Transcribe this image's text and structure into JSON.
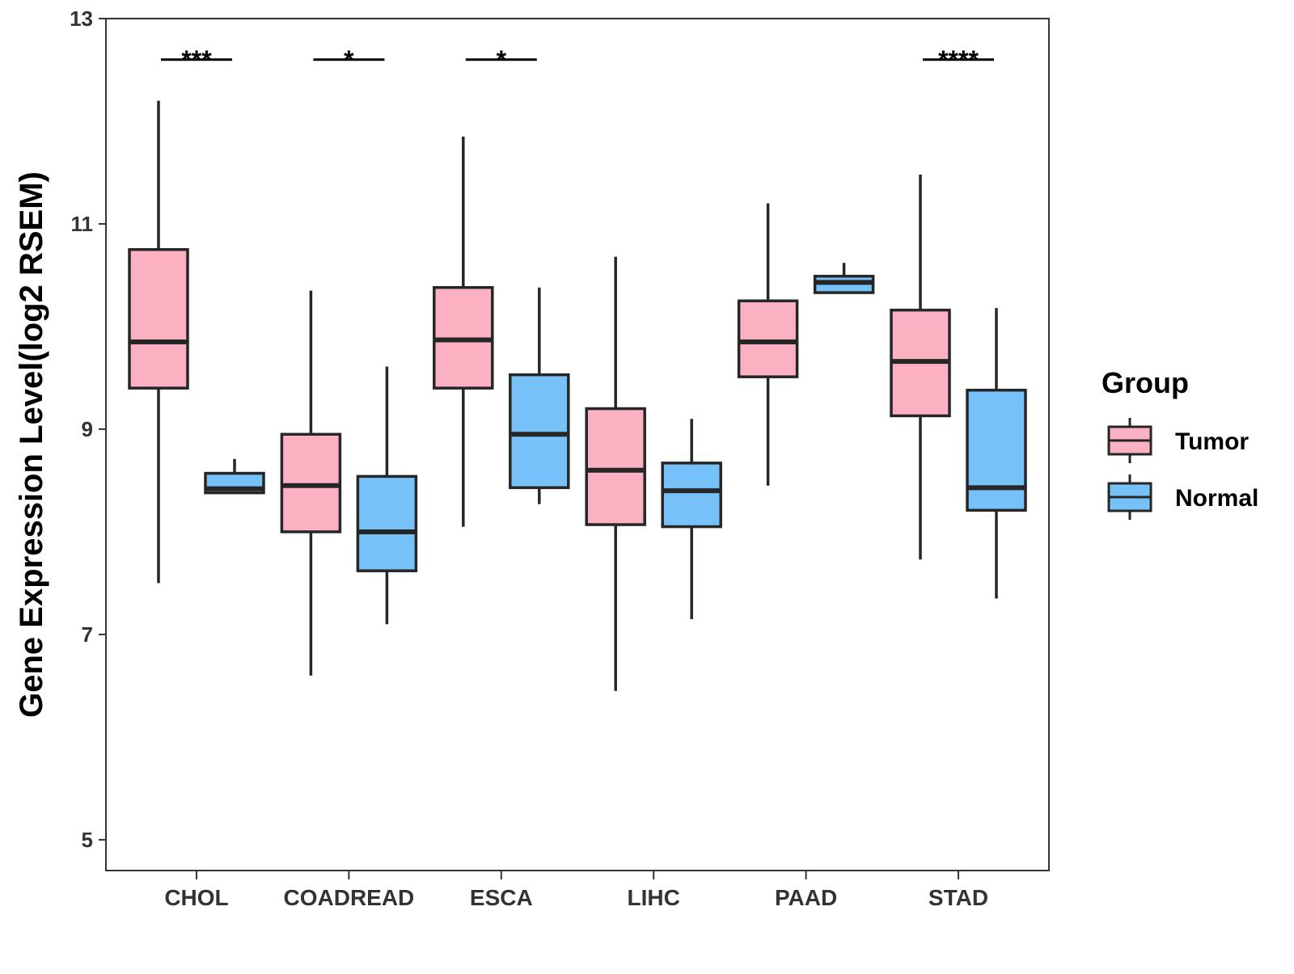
{
  "chart_data": {
    "type": "boxplot",
    "title": "",
    "xlabel": "",
    "ylabel": "Gene Expression Level(log2 RSEM)",
    "ylim": [
      4.7,
      13
    ],
    "yticks": [
      5,
      7,
      9,
      11,
      13
    ],
    "categories": [
      "CHOL",
      "COADREAD",
      "ESCA",
      "LIHC",
      "PAAD",
      "STAD"
    ],
    "legend": {
      "title": "Group",
      "position": "right",
      "entries": [
        {
          "name": "Tumor",
          "color": "#FCB1C3"
        },
        {
          "name": "Normal",
          "color": "#75C1F8"
        }
      ]
    },
    "series": [
      {
        "name": "Tumor",
        "color": "#FCB1C3",
        "boxes": [
          {
            "category": "CHOL",
            "whisker_low": 7.5,
            "q1": 9.4,
            "median": 9.85,
            "q3": 10.75,
            "whisker_high": 12.2
          },
          {
            "category": "COADREAD",
            "whisker_low": 6.6,
            "q1": 8.0,
            "median": 8.45,
            "q3": 8.95,
            "whisker_high": 10.35
          },
          {
            "category": "ESCA",
            "whisker_low": 8.05,
            "q1": 9.4,
            "median": 9.87,
            "q3": 10.38,
            "whisker_high": 11.85
          },
          {
            "category": "LIHC",
            "whisker_low": 6.45,
            "q1": 8.07,
            "median": 8.6,
            "q3": 9.2,
            "whisker_high": 10.68
          },
          {
            "category": "PAAD",
            "whisker_low": 8.45,
            "q1": 9.51,
            "median": 9.85,
            "q3": 10.25,
            "whisker_high": 11.2
          },
          {
            "category": "STAD",
            "whisker_low": 7.73,
            "q1": 9.13,
            "median": 9.66,
            "q3": 10.16,
            "whisker_high": 11.48
          }
        ]
      },
      {
        "name": "Normal",
        "color": "#75C1F8",
        "boxes": [
          {
            "category": "CHOL",
            "whisker_low": 8.38,
            "q1": 8.38,
            "median": 8.42,
            "q3": 8.57,
            "whisker_high": 8.71
          },
          {
            "category": "COADREAD",
            "whisker_low": 7.1,
            "q1": 7.62,
            "median": 8.0,
            "q3": 8.54,
            "whisker_high": 9.61
          },
          {
            "category": "ESCA",
            "whisker_low": 8.27,
            "q1": 8.43,
            "median": 8.95,
            "q3": 9.53,
            "whisker_high": 10.38
          },
          {
            "category": "LIHC",
            "whisker_low": 7.15,
            "q1": 8.05,
            "median": 8.4,
            "q3": 8.67,
            "whisker_high": 9.1
          },
          {
            "category": "PAAD",
            "whisker_low": 10.33,
            "q1": 10.33,
            "median": 10.43,
            "q3": 10.49,
            "whisker_high": 10.62
          },
          {
            "category": "STAD",
            "whisker_low": 7.35,
            "q1": 8.21,
            "median": 8.43,
            "q3": 9.38,
            "whisker_high": 10.18
          }
        ]
      }
    ],
    "significance": [
      {
        "category": "CHOL",
        "label": "***"
      },
      {
        "category": "COADREAD",
        "label": "*"
      },
      {
        "category": "ESCA",
        "label": "*"
      },
      {
        "category": "STAD",
        "label": "****"
      }
    ],
    "significance_level": 12.6
  }
}
